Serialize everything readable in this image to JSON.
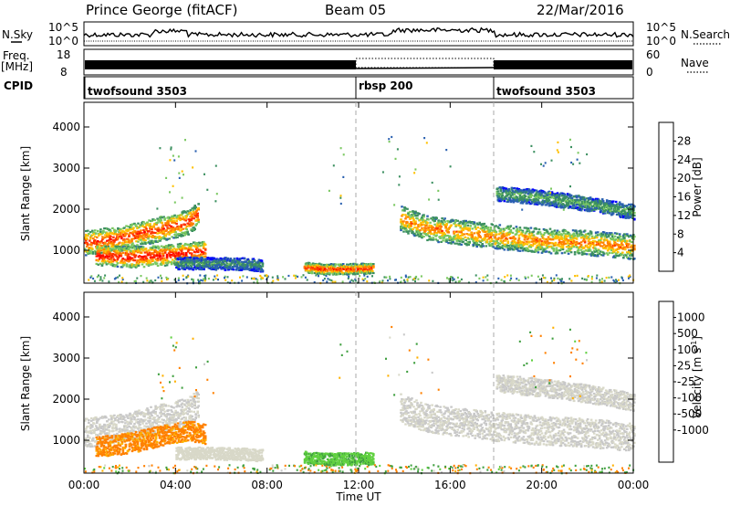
{
  "header": {
    "station": "Prince George (fitACF)",
    "beam": "Beam 05",
    "date": "22/Mar/2016"
  },
  "nsky_panel": {
    "left_label": "N.Sky",
    "right_label": "N.Search",
    "left_ticks": [
      "10^5",
      "10^0"
    ],
    "right_ticks": [
      "10^5",
      "10^0"
    ]
  },
  "freq_panel": {
    "left_label": "Freq.",
    "left_units": "[MHz]",
    "right_label": "Nave",
    "left_ticks": [
      "18",
      "8"
    ],
    "right_ticks": [
      "60",
      "0"
    ]
  },
  "cpid_panel": {
    "label": "CPID",
    "segments": [
      {
        "name": "twofsound 3503",
        "start_hour": 0
      },
      {
        "name": "rbsp 200",
        "start_hour": 12
      },
      {
        "name": "twofsound 3503",
        "start_hour": 18
      }
    ]
  },
  "colors": {
    "power": [
      "#0000ff",
      "#2a60b0",
      "#3c9060",
      "#7ac860",
      "#ffc000",
      "#ff8000",
      "#ff3000",
      "#ff0000"
    ],
    "velocity": [
      "#3050c0",
      "#3c8050",
      "#40a040",
      "#60d040",
      "#c8c8c8",
      "#d8d8c8",
      "#ffb000",
      "#ff8000",
      "#ff4000",
      "#ff0000"
    ],
    "ground_scatter": "#c0c0c0"
  },
  "chart_data": [
    {
      "type": "heatmap",
      "name": "power-panel",
      "ylabel": "Slant Range [km]",
      "yticks": [
        "1000",
        "2000",
        "3000",
        "4000"
      ],
      "ylim": [
        200,
        4600
      ],
      "xlim": [
        0,
        24
      ],
      "colorbar_label": "Power [dB]",
      "colorbar_ticks": [
        "4",
        "8",
        "12",
        "16",
        "20",
        "24",
        "28"
      ],
      "bands": [
        {
          "t": [
            0,
            1.5,
            3,
            4.5,
            5
          ],
          "r": [
            1200,
            1300,
            1500,
            1700,
            1900
          ],
          "w": 300,
          "value": 26
        },
        {
          "t": [
            0.5,
            2,
            3.5,
            4.5,
            5.3
          ],
          "r": [
            900,
            850,
            900,
            950,
            1000
          ],
          "w": 250,
          "value": 28
        },
        {
          "t": [
            4,
            5.5,
            7,
            7.8
          ],
          "r": [
            700,
            700,
            680,
            650
          ],
          "w": 150,
          "value": 10
        },
        {
          "t": [
            9.6,
            10.5,
            11.5,
            12.6
          ],
          "r": [
            600,
            560,
            560,
            580
          ],
          "w": 130,
          "value": 26
        },
        {
          "t": [
            13.8,
            15,
            16.5,
            18,
            20,
            22,
            24
          ],
          "r": [
            1800,
            1550,
            1450,
            1350,
            1250,
            1200,
            1100
          ],
          "w": 300,
          "value": 22
        },
        {
          "t": [
            18,
            20,
            22,
            24
          ],
          "r": [
            2400,
            2300,
            2150,
            1950
          ],
          "w": 180,
          "value": 12
        }
      ]
    },
    {
      "type": "heatmap",
      "name": "velocity-panel",
      "ylabel": "Slant Range [km]",
      "yticks": [
        "1000",
        "2000",
        "3000",
        "4000"
      ],
      "ylim": [
        200,
        4600
      ],
      "xlim": [
        0,
        24
      ],
      "xlabel": "Time UT",
      "xticks": [
        "00:00",
        "04:00",
        "08:00",
        "12:00",
        "16:00",
        "20:00",
        "00:00"
      ],
      "colorbar_label": "Velocity [m s^-1]",
      "colorbar_ticks": [
        "1000",
        "500",
        "100",
        "25",
        "-25",
        "-100",
        "-500",
        "-1000"
      ],
      "bands": [
        {
          "t": [
            0,
            1.5,
            3,
            4.5,
            5
          ],
          "r": [
            1200,
            1300,
            1500,
            1700,
            1900
          ],
          "w": 350,
          "value": 0
        },
        {
          "t": [
            0.5,
            2,
            3.5,
            4.5,
            5.3
          ],
          "r": [
            850,
            950,
            1150,
            1250,
            1150
          ],
          "w": 250,
          "value": -150
        },
        {
          "t": [
            4,
            5.5,
            7,
            7.8
          ],
          "r": [
            700,
            700,
            680,
            650
          ],
          "w": 150,
          "value": -10
        },
        {
          "t": [
            9.6,
            10.5,
            11.5,
            12.6
          ],
          "r": [
            600,
            560,
            560,
            580
          ],
          "w": 150,
          "value": 80
        },
        {
          "t": [
            13.8,
            15,
            16.5,
            18,
            20,
            22,
            24
          ],
          "r": [
            1800,
            1550,
            1450,
            1350,
            1250,
            1200,
            1100
          ],
          "w": 350,
          "value": 0
        },
        {
          "t": [
            18,
            20,
            22,
            24
          ],
          "r": [
            2400,
            2300,
            2150,
            1950
          ],
          "w": 220,
          "value": 0
        }
      ]
    }
  ]
}
